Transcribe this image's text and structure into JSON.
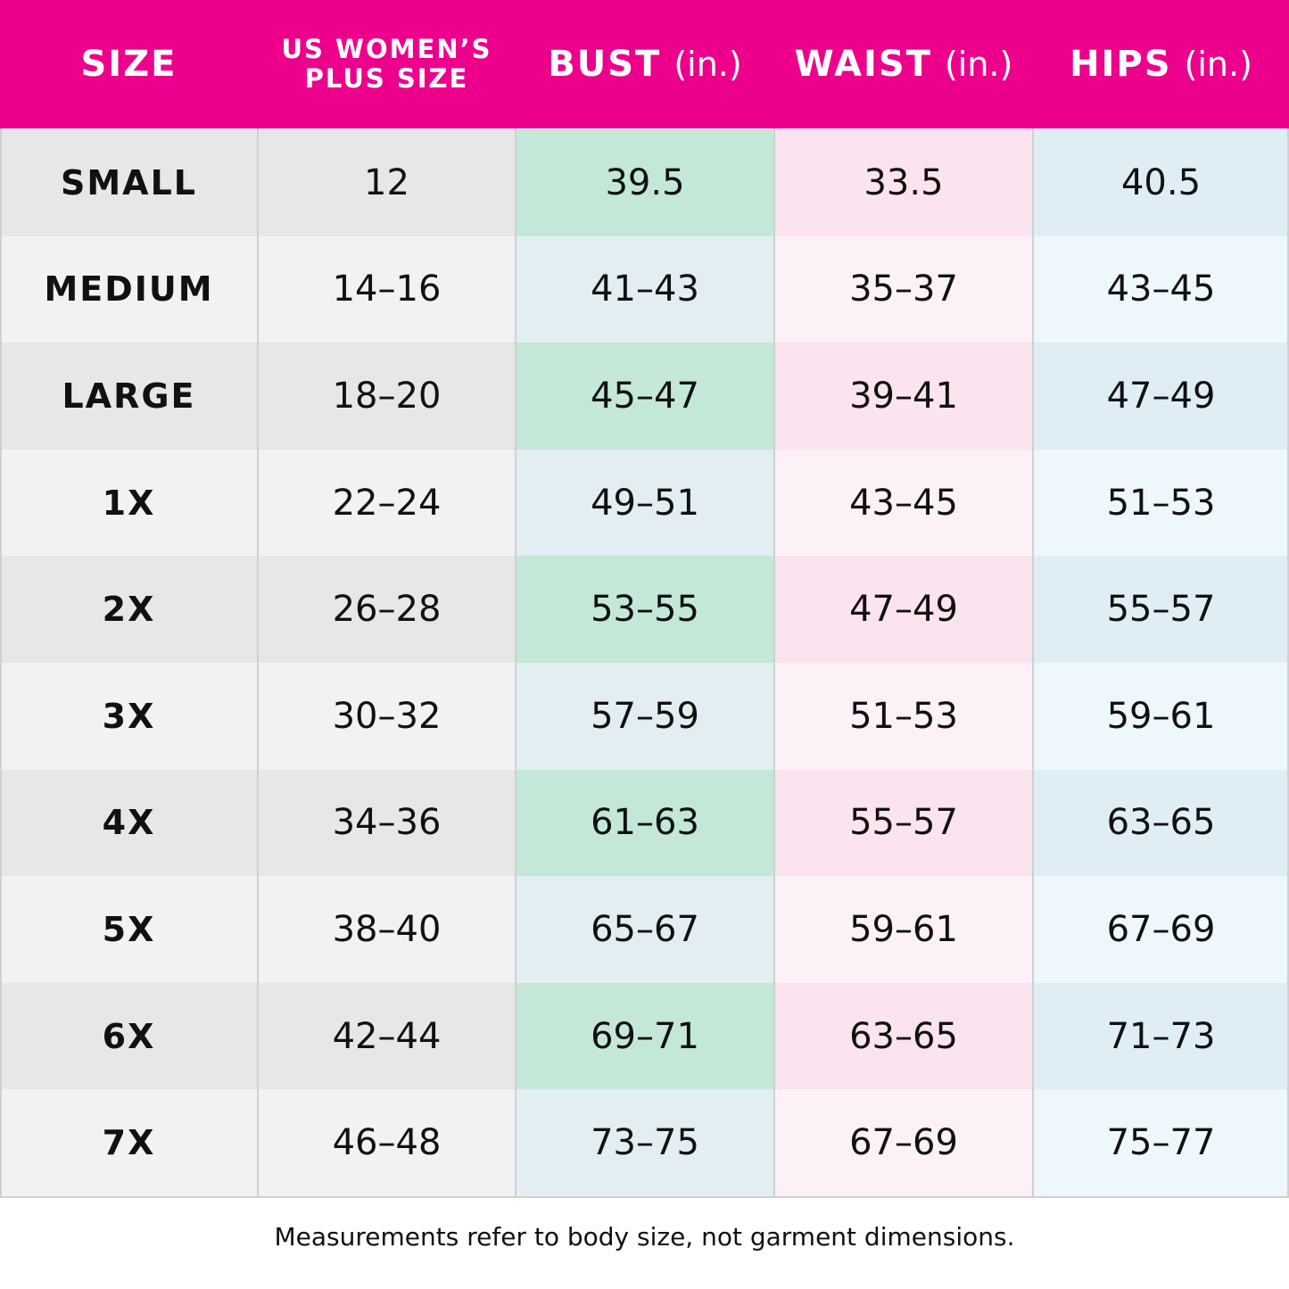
{
  "header": {
    "columns": [
      {
        "label": "SIZE"
      },
      {
        "label_lines": [
          "US WOMEN’S",
          "PLUS SIZE"
        ]
      },
      {
        "label": "BUST",
        "unit": "(in.)"
      },
      {
        "label": "WAIST",
        "unit": "(in.)"
      },
      {
        "label": "HIPS",
        "unit": "(in.)"
      }
    ]
  },
  "table": {
    "rows": [
      [
        "SMALL",
        "12",
        "39.5",
        "33.5",
        "40.5"
      ],
      [
        "MEDIUM",
        "14–16",
        "41–43",
        "35–37",
        "43–45"
      ],
      [
        "LARGE",
        "18–20",
        "45–47",
        "39–41",
        "47–49"
      ],
      [
        "1X",
        "22–24",
        "49–51",
        "43–45",
        "51–53"
      ],
      [
        "2X",
        "26–28",
        "53–55",
        "47–49",
        "55–57"
      ],
      [
        "3X",
        "30–32",
        "57–59",
        "51–53",
        "59–61"
      ],
      [
        "4X",
        "34–36",
        "61–63",
        "55–57",
        "63–65"
      ],
      [
        "5X",
        "38–40",
        "65–67",
        "59–61",
        "67–69"
      ],
      [
        "6X",
        "42–44",
        "69–71",
        "63–65",
        "71–73"
      ],
      [
        "7X",
        "46–48",
        "73–75",
        "67–69",
        "75–77"
      ]
    ]
  },
  "footnote": "Measurements refer to body size, not garment dimensions."
}
